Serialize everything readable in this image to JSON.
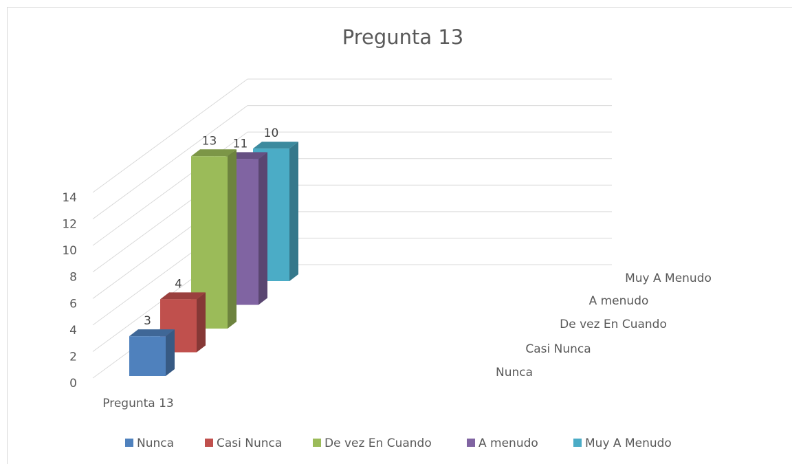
{
  "chart_data": {
    "type": "bar3d",
    "title": "Pregunta 13",
    "categories": [
      "Pregunta 13"
    ],
    "series": [
      {
        "name": "Nunca",
        "color": "#4f81bd",
        "values": [
          3
        ]
      },
      {
        "name": "Casi Nunca",
        "color": "#c0504d",
        "values": [
          4
        ]
      },
      {
        "name": "De vez En Cuando",
        "color": "#9bbb59",
        "values": [
          13
        ]
      },
      {
        "name": "A menudo",
        "color": "#8064a2",
        "values": [
          11
        ]
      },
      {
        "name": "Muy A Menudo",
        "color": "#4bacc6",
        "values": [
          10
        ]
      }
    ],
    "ylim": [
      0,
      14
    ],
    "yticks": [
      0,
      2,
      4,
      6,
      8,
      10,
      12,
      14
    ],
    "grid": true,
    "legend": "bottom"
  }
}
